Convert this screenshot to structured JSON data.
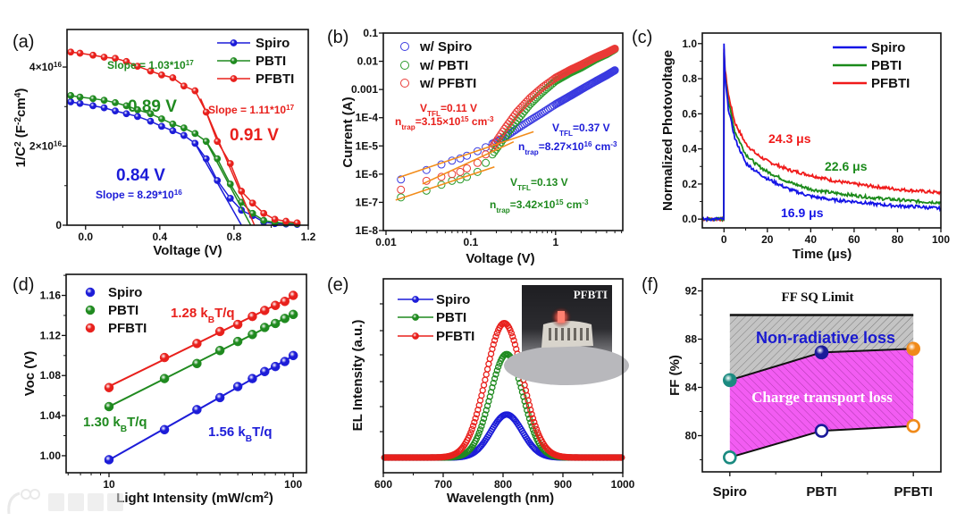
{
  "figure": {
    "watermark": "大数跨境"
  },
  "chart_data": [
    {
      "panel": "(a)",
      "type": "line",
      "xlabel": "Voltage (V)",
      "ylabel": [
        {
          "t": "1/C"
        },
        {
          "t": "2",
          "s": "sup"
        },
        {
          "t": " (F"
        },
        {
          "t": "-2",
          "s": "sup"
        },
        {
          "t": "cm"
        },
        {
          "t": "4",
          "s": "sup"
        },
        {
          "t": ")"
        }
      ],
      "y_unit": "1e16",
      "xlim": [
        -0.1,
        1.2
      ],
      "ylim": [
        0,
        4.95
      ],
      "xticks": [
        0,
        0.4,
        0.8,
        1.2
      ],
      "xticklabels": [
        "0.0",
        "0.4",
        "0.8",
        "1.2"
      ],
      "yticks": [
        0,
        2,
        4
      ],
      "yticklabels": [
        "0",
        [
          {
            "t": "2×10"
          },
          {
            "t": "16",
            "s": "sup"
          }
        ],
        [
          {
            "t": "4×10"
          },
          {
            "t": "16",
            "s": "sup"
          }
        ]
      ],
      "legend": "top-right",
      "series": [
        {
          "name": "Spiro",
          "color": "#1c1cd8",
          "x": [
            -0.08,
            -0.03,
            0.04,
            0.1,
            0.16,
            0.22,
            0.28,
            0.35,
            0.41,
            0.47,
            0.53,
            0.59,
            0.65,
            0.71,
            0.78,
            0.84,
            0.9,
            0.96,
            1.02,
            1.08,
            1.14
          ],
          "y": [
            3.12,
            3.08,
            3.02,
            2.97,
            2.89,
            2.82,
            2.75,
            2.63,
            2.5,
            2.39,
            2.27,
            2.07,
            1.68,
            1.13,
            0.68,
            0.38,
            0.24,
            0.08,
            0.04,
            0.03,
            0.02
          ],
          "fit": {
            "x": [
              0.58,
              0.84
            ],
            "y": [
              2.15,
              0
            ]
          }
        },
        {
          "name": "PBTI",
          "color": "#1f8a1f",
          "x": [
            -0.08,
            -0.03,
            0.04,
            0.1,
            0.16,
            0.22,
            0.28,
            0.35,
            0.41,
            0.47,
            0.53,
            0.59,
            0.65,
            0.71,
            0.78,
            0.84,
            0.9,
            0.96,
            1.02,
            1.08,
            1.14
          ],
          "y": [
            3.28,
            3.24,
            3.2,
            3.16,
            3.1,
            3.02,
            2.92,
            2.82,
            2.69,
            2.56,
            2.46,
            2.32,
            2.12,
            1.68,
            1.04,
            0.58,
            0.3,
            0.12,
            0.07,
            0.05,
            0.04
          ],
          "fit": {
            "x": [
              0.64,
              0.89
            ],
            "y": [
              2.2,
              0
            ]
          }
        },
        {
          "name": "PFBTI",
          "color": "#e8201c",
          "x": [
            -0.08,
            -0.03,
            0.04,
            0.1,
            0.16,
            0.22,
            0.28,
            0.35,
            0.41,
            0.47,
            0.53,
            0.59,
            0.65,
            0.71,
            0.78,
            0.84,
            0.9,
            0.96,
            1.02,
            1.08,
            1.14
          ],
          "y": [
            4.38,
            4.35,
            4.3,
            4.25,
            4.22,
            4.14,
            4.02,
            3.9,
            3.8,
            3.73,
            3.52,
            3.4,
            2.86,
            2.12,
            1.56,
            0.86,
            0.56,
            0.3,
            0.15,
            0.1,
            0.06
          ],
          "fit": {
            "x": [
              0.62,
              0.91
            ],
            "y": [
              3.2,
              0
            ]
          }
        }
      ],
      "annotations": [
        {
          "text": [
            {
              "t": "Slope = 1.03*10"
            },
            {
              "t": "17",
              "s": "sup"
            }
          ],
          "color": "#1f8a1f"
        },
        {
          "text": "0.89 V",
          "color": "#1f8a1f"
        },
        {
          "text": [
            {
              "t": "Slope = 1.11*10"
            },
            {
              "t": "17",
              "s": "sup"
            }
          ],
          "color": "#e8201c"
        },
        {
          "text": "0.91 V",
          "color": "#e8201c"
        },
        {
          "text": "0.84 V",
          "color": "#1c1cd8"
        },
        {
          "text": [
            {
              "t": "Slope = 8.29*10"
            },
            {
              "t": "16",
              "s": "sup"
            }
          ],
          "color": "#1c1cd8"
        }
      ]
    },
    {
      "panel": "(b)",
      "type": "scatter",
      "xlabel": "Voltage (V)",
      "ylabel": "Current (A)",
      "xscale": "log",
      "yscale": "log",
      "xlim": [
        0.0093,
        6.2
      ],
      "ylim": [
        1e-08,
        0.1
      ],
      "xticks": [
        0.01,
        0.1,
        1
      ],
      "xticklabels": [
        "0.01",
        "0.1",
        "1"
      ],
      "yticks": [
        1e-08,
        1e-07,
        1e-06,
        1e-05,
        0.0001,
        0.001,
        0.01,
        0.1
      ],
      "yticklabels": [
        "1E-8",
        "1E-7",
        "1E-6",
        "1E-5",
        "1E-4",
        "0.001",
        "0.01",
        "0.1"
      ],
      "legend": "top-left",
      "series": [
        {
          "name": "w/ Spiro",
          "color": "#3a3ae0",
          "x": [
            0.015,
            0.03,
            0.045,
            0.06,
            0.075,
            0.09,
            0.12,
            0.15,
            0.18,
            0.25,
            0.35,
            0.5,
            0.7,
            1,
            1.5,
            2,
            3,
            4,
            5
          ],
          "y": [
            6.5e-07,
            1.4e-06,
            2.2e-06,
            3e-06,
            3.6e-06,
            4.5e-06,
            6.5e-06,
            9e-06,
            1.2e-05,
            2e-05,
            4e-05,
            8e-05,
            0.00015,
            0.0003,
            0.0006,
            0.001,
            0.002,
            0.0032,
            0.0048
          ]
        },
        {
          "name": "w/ PBTI",
          "color": "#2a9a2a",
          "x": [
            0.015,
            0.03,
            0.045,
            0.06,
            0.075,
            0.09,
            0.12,
            0.15,
            0.18,
            0.25,
            0.35,
            0.5,
            0.7,
            1,
            1.5,
            2,
            3,
            4,
            5
          ],
          "y": [
            1.5e-07,
            2.6e-07,
            4.2e-07,
            5.8e-07,
            6.5e-07,
            8e-07,
            1.2e-06,
            2.5e-06,
            5e-06,
            2e-05,
            8e-05,
            0.0003,
            0.0008,
            0.002,
            0.004,
            0.006,
            0.012,
            0.018,
            0.027
          ]
        },
        {
          "name": "w/ PFBTI",
          "color": "#ea3a36",
          "x": [
            0.015,
            0.03,
            0.045,
            0.06,
            0.075,
            0.09,
            0.12,
            0.15,
            0.18,
            0.25,
            0.35,
            0.5,
            0.7,
            1,
            1.5,
            2,
            3,
            4,
            5
          ],
          "y": [
            2.8e-07,
            5.8e-07,
            8e-07,
            1e-06,
            1.2e-06,
            1.6e-06,
            2.5e-06,
            5e-06,
            9e-06,
            4e-05,
            0.00016,
            0.0005,
            0.0012,
            0.0026,
            0.005,
            0.0075,
            0.014,
            0.02,
            0.028
          ]
        }
      ],
      "fit_lines": [
        {
          "x": [
            0.014,
            0.55
          ],
          "y": [
            7.5e-07,
            3.2e-05
          ]
        },
        {
          "x": [
            0.027,
            0.32
          ],
          "y": [
            4.5e-07,
            1.4e-05
          ]
        },
        {
          "x": [
            0.013,
            0.19
          ],
          "y": [
            1.2e-07,
            1.8e-06
          ]
        }
      ],
      "fit_color": "#f28c1a",
      "annotations": [
        {
          "text": [
            {
              "t": "V"
            },
            {
              "t": "TFL",
              "s": "sub"
            },
            {
              "t": "=0.11 V"
            }
          ],
          "color": "#e8201c"
        },
        {
          "text": [
            {
              "t": "n"
            },
            {
              "t": "trap",
              "s": "sub"
            },
            {
              "t": "=3.15×10"
            },
            {
              "t": "15",
              "s": "sup"
            },
            {
              "t": " cm"
            },
            {
              "t": "-3",
              "s": "sup"
            }
          ],
          "color": "#e8201c"
        },
        {
          "text": [
            {
              "t": "V"
            },
            {
              "t": "TFL",
              "s": "sub"
            },
            {
              "t": "=0.37 V"
            }
          ],
          "color": "#1c1cd8"
        },
        {
          "text": [
            {
              "t": "n"
            },
            {
              "t": "trap",
              "s": "sub"
            },
            {
              "t": "=8.27×10"
            },
            {
              "t": "16",
              "s": "sup"
            },
            {
              "t": " cm"
            },
            {
              "t": "-3",
              "s": "sup"
            }
          ],
          "color": "#1c1cd8"
        },
        {
          "text": [
            {
              "t": "V"
            },
            {
              "t": "TFL",
              "s": "sub"
            },
            {
              "t": "=0.13 V"
            }
          ],
          "color": "#1f8a1f"
        },
        {
          "text": [
            {
              "t": "n"
            },
            {
              "t": "trap",
              "s": "sub"
            },
            {
              "t": "=3.42×10"
            },
            {
              "t": "15",
              "s": "sup"
            },
            {
              "t": " cm"
            },
            {
              "t": "-3",
              "s": "sup"
            }
          ],
          "color": "#1f8a1f"
        }
      ]
    },
    {
      "panel": "(c)",
      "type": "line",
      "xlabel": "Time (μs)",
      "ylabel": "Normalized Photovoltage",
      "xlim": [
        -10,
        100
      ],
      "ylim": [
        -0.05,
        1.06
      ],
      "xticks": [
        0,
        20,
        40,
        60,
        80,
        100
      ],
      "xticklabels": [
        "0",
        "20",
        "40",
        "60",
        "80",
        "100"
      ],
      "yticks": [
        0,
        0.2,
        0.4,
        0.6,
        0.8,
        1.0
      ],
      "yticklabels": [
        "0.0",
        "0.2",
        "0.4",
        "0.6",
        "0.8",
        "1.0"
      ],
      "legend": "top-right",
      "series": [
        {
          "name": "Spiro",
          "color": "#1414e6",
          "x": [
            -10,
            -5,
            -0.1,
            0,
            0.5,
            2,
            5,
            10,
            15,
            20,
            30,
            40,
            50,
            60,
            70,
            80,
            90,
            100
          ],
          "y": [
            0,
            0,
            0,
            1.0,
            0.8,
            0.63,
            0.46,
            0.32,
            0.27,
            0.23,
            0.17,
            0.13,
            0.11,
            0.1,
            0.085,
            0.075,
            0.07,
            0.06
          ]
        },
        {
          "name": "PBTI",
          "color": "#1a8a1a",
          "x": [
            -10,
            -5,
            -0.1,
            0,
            0.5,
            2,
            5,
            10,
            15,
            20,
            30,
            40,
            50,
            60,
            70,
            80,
            90,
            100
          ],
          "y": [
            0,
            0,
            0,
            0.95,
            0.82,
            0.67,
            0.5,
            0.37,
            0.31,
            0.27,
            0.21,
            0.17,
            0.15,
            0.135,
            0.12,
            0.11,
            0.1,
            0.095
          ]
        },
        {
          "name": "PFBTI",
          "color": "#f01a1a",
          "x": [
            -10,
            -5,
            -0.1,
            0,
            0.5,
            2,
            5,
            10,
            15,
            20,
            30,
            40,
            50,
            60,
            70,
            80,
            90,
            100
          ],
          "y": [
            0,
            0,
            0,
            0.97,
            0.85,
            0.71,
            0.55,
            0.43,
            0.37,
            0.33,
            0.28,
            0.25,
            0.22,
            0.2,
            0.185,
            0.17,
            0.16,
            0.15
          ]
        }
      ],
      "annotations": [
        {
          "text": "24.3 μs",
          "color": "#f01a1a"
        },
        {
          "text": "22.6 μs",
          "color": "#1a8a1a"
        },
        {
          "text": "16.9 μs",
          "color": "#1414e6"
        }
      ]
    },
    {
      "panel": "(d)",
      "type": "scatter",
      "xlabel": [
        {
          "t": "Light Intensity (mW/cm"
        },
        {
          "t": "2",
          "s": "sup"
        },
        {
          "t": ")"
        }
      ],
      "ylabel": "Voc  (V)",
      "xscale": "log",
      "xlim": [
        5.85,
        118
      ],
      "ylim": [
        0.983,
        1.181
      ],
      "xticks": [
        10,
        100
      ],
      "xticklabels": [
        "10",
        "100"
      ],
      "yticks": [
        1.0,
        1.04,
        1.08,
        1.12,
        1.16
      ],
      "yticklabels": [
        "1.00",
        "1.04",
        "1.08",
        "1.12",
        "1.16"
      ],
      "legend": "top-left",
      "series": [
        {
          "name": "Spiro",
          "color": "#1c1cd8",
          "x": [
            10,
            20,
            30,
            40,
            50,
            60,
            70,
            80,
            90,
            100
          ],
          "y": [
            0.996,
            1.026,
            1.046,
            1.058,
            1.069,
            1.077,
            1.084,
            1.089,
            1.094,
            1.1
          ]
        },
        {
          "name": "PBTI",
          "color": "#1f8a1f",
          "x": [
            10,
            20,
            30,
            40,
            50,
            60,
            70,
            80,
            90,
            100
          ],
          "y": [
            1.049,
            1.077,
            1.092,
            1.105,
            1.114,
            1.121,
            1.128,
            1.132,
            1.137,
            1.141
          ]
        },
        {
          "name": "PFBTI",
          "color": "#e8201c",
          "x": [
            10,
            20,
            30,
            40,
            50,
            60,
            70,
            80,
            90,
            100
          ],
          "y": [
            1.068,
            1.098,
            1.112,
            1.124,
            1.131,
            1.139,
            1.145,
            1.15,
            1.154,
            1.16
          ]
        }
      ],
      "annotations": [
        {
          "text": [
            {
              "t": "1.28 k"
            },
            {
              "t": "B",
              "s": "sub"
            },
            {
              "t": "T/q"
            }
          ],
          "color": "#e8201c"
        },
        {
          "text": [
            {
              "t": "1.30 k"
            },
            {
              "t": "B",
              "s": "sub"
            },
            {
              "t": "T/q"
            }
          ],
          "color": "#1f8a1f"
        },
        {
          "text": [
            {
              "t": "1.56 k"
            },
            {
              "t": "B",
              "s": "sub"
            },
            {
              "t": "T/q"
            }
          ],
          "color": "#1c1cd8"
        }
      ]
    },
    {
      "panel": "(e)",
      "type": "line",
      "xlabel": "Wavelength (nm)",
      "ylabel": "EL Intensity (a.u.)",
      "xlim": [
        600,
        1000
      ],
      "ylim": [
        -0.113,
        1.33
      ],
      "xticks": [
        600,
        700,
        800,
        900,
        1000
      ],
      "xticklabels": [
        "600",
        "700",
        "800",
        "900",
        "1000"
      ],
      "legend": "top-left",
      "series": [
        {
          "name": "Spiro",
          "color": "#1c1cd8",
          "peak_nm": 806,
          "amplitude": 0.32,
          "fwhm_nm": 62
        },
        {
          "name": "PBTI",
          "color": "#1f8a1f",
          "peak_nm": 806,
          "amplitude": 0.77,
          "fwhm_nm": 64
        },
        {
          "name": "PFBTI",
          "color": "#e8201c",
          "peak_nm": 802,
          "amplitude": 1.0,
          "fwhm_nm": 72
        }
      ],
      "inset": {
        "label": "PFBTI"
      }
    },
    {
      "panel": "(f)",
      "type": "line",
      "ylabel": "FF (%)",
      "ylim": [
        77,
        93
      ],
      "yticks": [
        80,
        84,
        88,
        92
      ],
      "yticklabels": [
        "80",
        "84",
        "88",
        "92"
      ],
      "categories": [
        "Spiro",
        "PBTI",
        "PFBTI"
      ],
      "filled_markers": [
        84.6,
        86.9,
        87.2
      ],
      "open_markers": [
        78.2,
        80.4,
        80.8
      ],
      "sq_limit": 90,
      "marker_colors": [
        "#1a8a80",
        "#1a1a9a",
        "#f08a1a"
      ],
      "annotations": [
        {
          "text": "FF SQ Limit",
          "color": "#111111"
        },
        {
          "text": "Non-radiative loss",
          "color": "#1a1ad0"
        },
        {
          "text": "Charge transport loss",
          "color": "#ffffff"
        }
      ]
    }
  ]
}
